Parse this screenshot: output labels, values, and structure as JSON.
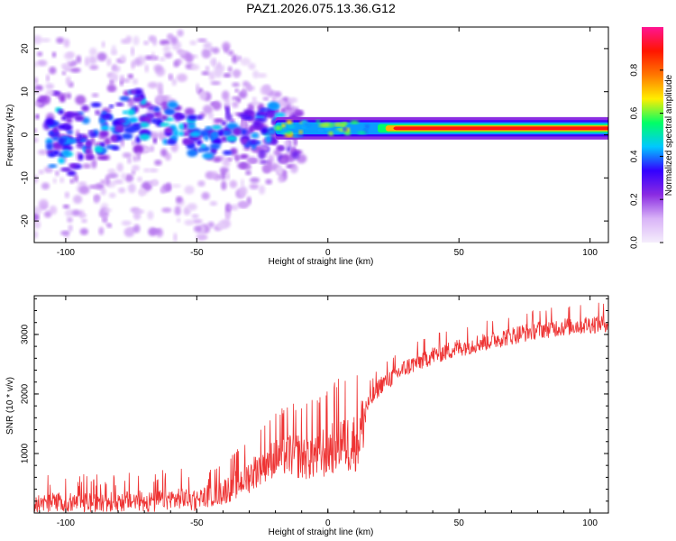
{
  "title": "PAZ1.2026.075.13.36.G12",
  "chart_data": [
    {
      "type": "heatmap",
      "title": "PAZ1.2026.075.13.36.G12",
      "xlabel": "Height of straight line (km)",
      "ylabel": "Frequency (Hz)",
      "xlim": [
        -112,
        107
      ],
      "ylim": [
        -25,
        25
      ],
      "x_ticks": [
        -100,
        -50,
        0,
        50,
        100
      ],
      "y_ticks": [
        -20,
        -10,
        0,
        10,
        20
      ],
      "colorbar": {
        "label": "Normalized spectral amplitude",
        "range": [
          0,
          1
        ],
        "ticks": [
          0.0,
          0.2,
          0.4,
          0.6,
          0.8
        ],
        "colors": [
          "#f5eefc",
          "#d9b3f7",
          "#8a2be2",
          "#3300ff",
          "#00c8ff",
          "#00ff66",
          "#ffee00",
          "#ff7700",
          "#ff1500",
          "#ff1493"
        ]
      },
      "ridge": {
        "description_frequency_hz": 1.5,
        "strong_from_km": -20,
        "strong_to_km": 107
      }
    },
    {
      "type": "line",
      "xlabel": "Height of straight line (km)",
      "ylabel": "SNR (10 * v/v)",
      "xlim": [
        -112,
        107
      ],
      "ylim": [
        0,
        3650
      ],
      "x_ticks": [
        -100,
        -50,
        0,
        50,
        100
      ],
      "y_ticks": [
        1000,
        2000,
        3000
      ],
      "series": [
        {
          "name": "SNR",
          "color": "#ee3333",
          "x": [
            -112,
            -100,
            -90,
            -80,
            -70,
            -60,
            -50,
            -40,
            -30,
            -25,
            -20,
            -15,
            -10,
            -5,
            0,
            5,
            8,
            10,
            12,
            15,
            20,
            30,
            40,
            50,
            60,
            70,
            80,
            90,
            100,
            107
          ],
          "y": [
            180,
            170,
            190,
            200,
            210,
            230,
            250,
            360,
            620,
            820,
            950,
            1000,
            960,
            980,
            1050,
            1250,
            1150,
            1200,
            1300,
            1800,
            2150,
            2450,
            2650,
            2780,
            2880,
            2980,
            3080,
            3130,
            3170,
            3200
          ]
        }
      ]
    }
  ]
}
